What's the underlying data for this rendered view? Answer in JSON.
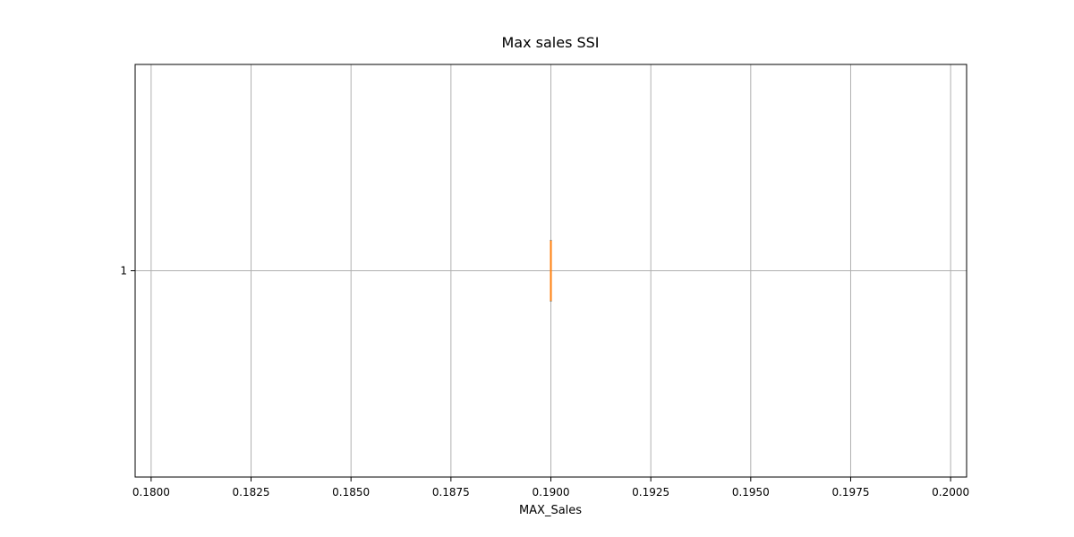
{
  "chart_data": {
    "type": "boxplot",
    "title": "Max sales SSI",
    "xlabel": "MAX_Sales",
    "ylabel": "",
    "orientation": "horizontal",
    "xlim": [
      0.1796,
      0.2004
    ],
    "x_ticks": [
      "0.1800",
      "0.1825",
      "0.1850",
      "0.1875",
      "0.1900",
      "0.1925",
      "0.1950",
      "0.1975",
      "0.2000"
    ],
    "y_ticks": [
      "1"
    ],
    "grid": true,
    "boxes": [
      {
        "label": "1",
        "min": 0.19,
        "q1": 0.19,
        "median": 0.19,
        "q3": 0.19,
        "max": 0.19
      }
    ],
    "colors": {
      "box": "#1f77b4",
      "median": "#ff7f0e",
      "grid": "#b0b0b0",
      "axes": "#000000"
    }
  }
}
